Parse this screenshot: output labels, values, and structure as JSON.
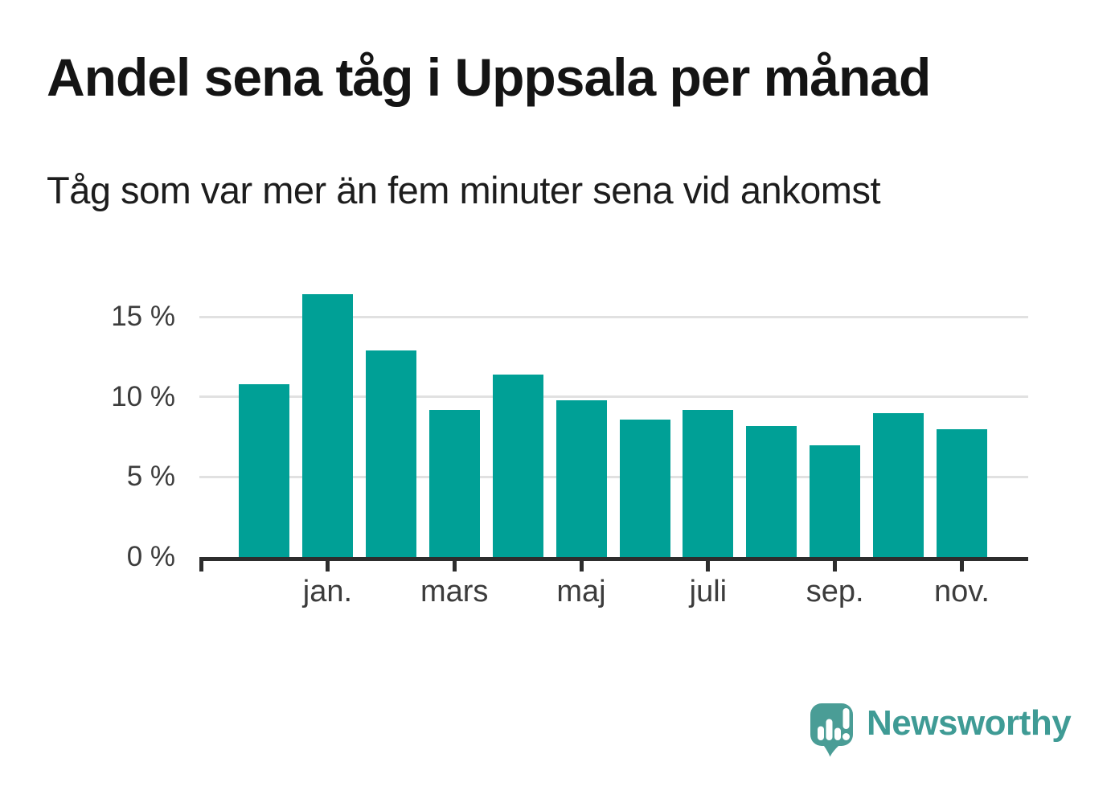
{
  "chart_data": {
    "type": "bar",
    "title": "Andel sena tåg i Uppsala per månad",
    "subtitle": "Tåg som var mer än fem minuter sena vid ankomst",
    "unit": "%",
    "n_bars": 12,
    "values": [
      10.8,
      16.4,
      12.9,
      9.2,
      11.4,
      9.8,
      8.6,
      9.2,
      8.2,
      7.0,
      9.0,
      8.0
    ],
    "x_ticks": [
      {
        "label": "jan.",
        "bar_index": 1
      },
      {
        "label": "mars",
        "bar_index": 3
      },
      {
        "label": "maj",
        "bar_index": 5
      },
      {
        "label": "juli",
        "bar_index": 7
      },
      {
        "label": "sep.",
        "bar_index": 9
      },
      {
        "label": "nov.",
        "bar_index": 11
      }
    ],
    "y_ticks": [
      {
        "label": "0 %",
        "value": 0
      },
      {
        "label": "5 %",
        "value": 5
      },
      {
        "label": "10 %",
        "value": 10
      },
      {
        "label": "15 %",
        "value": 15
      }
    ],
    "ylim": [
      0,
      17
    ],
    "grid": "horizontal",
    "legend": "none",
    "bar_color": "#00a096",
    "axis_color": "#2d2d2d",
    "gridline_color": "#e1e1e1",
    "tick_label_color": "#3c3c3c"
  },
  "branding": {
    "logo_text": "Newsworthy",
    "logo_color": "#3f9b95",
    "logo_mark": "speech-bubble-with-bar-chart-and-exclamation"
  }
}
